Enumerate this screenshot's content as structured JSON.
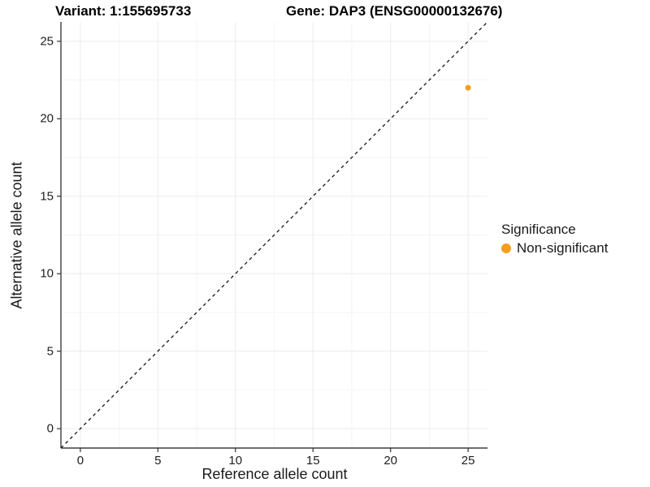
{
  "figure": {
    "title_variant": "Variant: 1:155695733",
    "title_gene": "Gene: DAP3 (ENSG00000132676)"
  },
  "chart_data": {
    "type": "scatter",
    "title": "Variant: 1:155695733 — Gene: DAP3 (ENSG00000132676)",
    "xlabel": "Reference allele count",
    "ylabel": "Alternative allele count",
    "xlim": [
      -1.25,
      26.25
    ],
    "ylim": [
      -1.25,
      26.25
    ],
    "x_ticks": [
      0,
      5,
      10,
      15,
      20,
      25
    ],
    "y_ticks": [
      0,
      5,
      10,
      15,
      20,
      25
    ],
    "minor_gridlines": [
      2.5,
      7.5,
      12.5,
      17.5,
      22.5
    ],
    "grid": "on",
    "points": [
      {
        "x": 25,
        "y": 22,
        "series": "Non-significant"
      }
    ],
    "reference_line": {
      "slope": 1,
      "intercept": 0,
      "style": "dashed"
    },
    "legend": {
      "title": "Significance",
      "position": "right",
      "entries": [
        {
          "label": "Non-significant",
          "color": "#F59E1E"
        }
      ]
    }
  },
  "colors": {
    "point_orange": "#F59E1E",
    "axis_line": "#3f3f3f",
    "tick_mark": "#333333",
    "grid_major": "#ebebeb",
    "grid_minor": "#f4f4f4",
    "identity_line": "#141414",
    "text": "#1a1a1a"
  }
}
